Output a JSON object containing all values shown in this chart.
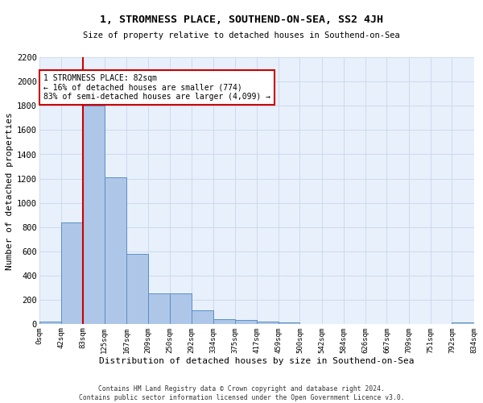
{
  "title": "1, STROMNESS PLACE, SOUTHEND-ON-SEA, SS2 4JH",
  "subtitle": "Size of property relative to detached houses in Southend-on-Sea",
  "xlabel": "Distribution of detached houses by size in Southend-on-Sea",
  "ylabel": "Number of detached properties",
  "bin_edges": [
    0,
    42,
    83,
    125,
    167,
    209,
    250,
    292,
    334,
    375,
    417,
    459,
    500,
    542,
    584,
    626,
    667,
    709,
    751,
    792,
    834
  ],
  "bar_heights": [
    25,
    840,
    1800,
    1210,
    580,
    255,
    255,
    115,
    45,
    35,
    25,
    15,
    0,
    0,
    0,
    0,
    0,
    0,
    0,
    15
  ],
  "bar_color": "#aec6e8",
  "bar_edge_color": "#5a8fc4",
  "grid_color": "#ccdaee",
  "bg_color": "#e8f0fb",
  "vline_x": 83,
  "vline_color": "#cc0000",
  "ylim_max": 2200,
  "yticks": [
    0,
    200,
    400,
    600,
    800,
    1000,
    1200,
    1400,
    1600,
    1800,
    2000,
    2200
  ],
  "annotation_line1": "1 STROMNESS PLACE: 82sqm",
  "annotation_line2": "← 16% of detached houses are smaller (774)",
  "annotation_line3": "83% of semi-detached houses are larger (4,099) →",
  "annotation_box_color": "#ffffff",
  "annotation_box_edge": "#cc0000",
  "footer_text": "Contains HM Land Registry data © Crown copyright and database right 2024.\nContains public sector information licensed under the Open Government Licence v3.0.",
  "tick_labels": [
    "0sqm",
    "42sqm",
    "83sqm",
    "125sqm",
    "167sqm",
    "209sqm",
    "250sqm",
    "292sqm",
    "334sqm",
    "375sqm",
    "417sqm",
    "459sqm",
    "500sqm",
    "542sqm",
    "584sqm",
    "626sqm",
    "667sqm",
    "709sqm",
    "751sqm",
    "792sqm",
    "834sqm"
  ]
}
